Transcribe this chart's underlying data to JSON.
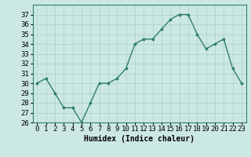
{
  "x": [
    0,
    1,
    2,
    3,
    4,
    5,
    6,
    7,
    8,
    9,
    10,
    11,
    12,
    13,
    14,
    15,
    16,
    17,
    18,
    19,
    20,
    21,
    22,
    23
  ],
  "y": [
    30,
    30.5,
    29,
    27.5,
    27.5,
    26,
    28,
    30,
    30,
    30.5,
    31.5,
    34,
    34.5,
    34.5,
    35.5,
    36.5,
    37,
    37,
    35,
    33.5,
    34,
    34.5,
    31.5,
    30
  ],
  "xlabel": "Humidex (Indice chaleur)",
  "ylim": [
    26,
    38
  ],
  "xlim": [
    -0.5,
    23.5
  ],
  "yticks": [
    26,
    27,
    28,
    29,
    30,
    31,
    32,
    33,
    34,
    35,
    36,
    37
  ],
  "xticks": [
    0,
    1,
    2,
    3,
    4,
    5,
    6,
    7,
    8,
    9,
    10,
    11,
    12,
    13,
    14,
    15,
    16,
    17,
    18,
    19,
    20,
    21,
    22,
    23
  ],
  "line_color": "#2e7d6e",
  "bg_color": "#cce8e4",
  "grid_color": "#aacfca",
  "label_fontsize": 7,
  "tick_fontsize": 6.5
}
